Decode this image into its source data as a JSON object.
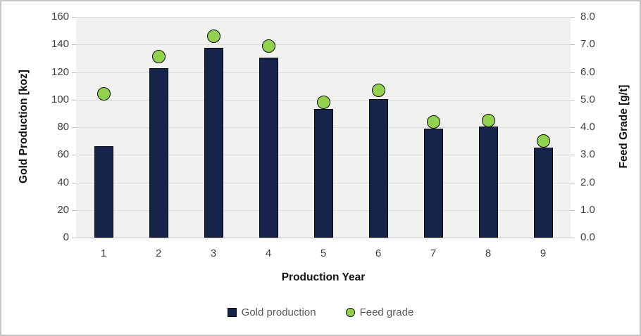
{
  "chart_data": {
    "type": "combo",
    "categories": [
      "1",
      "2",
      "3",
      "4",
      "5",
      "6",
      "7",
      "8",
      "9"
    ],
    "series": [
      {
        "name": "Gold production",
        "type": "bar",
        "axis": "left",
        "values": [
          66,
          123,
          137.5,
          130.5,
          93,
          100.5,
          79,
          80.5,
          65
        ]
      },
      {
        "name": "Feed grade",
        "type": "scatter",
        "axis": "right",
        "values": [
          5.2,
          6.55,
          7.3,
          6.95,
          4.9,
          5.35,
          4.2,
          4.25,
          3.5
        ]
      }
    ],
    "xlabel": "Production Year",
    "ylabel_left": "Gold Production  [koz]",
    "ylabel_right": "Feed Grade [g/t]",
    "ylim_left": [
      0,
      160
    ],
    "ylim_right": [
      0.0,
      8.0
    ],
    "yticks_left": [
      "160",
      "140",
      "120",
      "100",
      "80",
      "60",
      "40",
      "20",
      "0"
    ],
    "yticks_right": [
      "8.0",
      "7.0",
      "6.0",
      "5.0",
      "4.0",
      "3.0",
      "2.0",
      "1.0",
      "0.0"
    ],
    "grid": "horizontal",
    "legend_position": "bottom",
    "legend": [
      {
        "label": "Gold production",
        "marker": "square"
      },
      {
        "label": "Feed grade",
        "marker": "circle"
      }
    ]
  },
  "colors": {
    "bar_fill": "#16244c",
    "bar_border": "#05080f",
    "dot_fill": "#92d050",
    "dot_border": "#0a0a0a",
    "plot_bg": "#f1f1ef",
    "gridline": "#dcdcdc",
    "tick_text": "#404040",
    "legend_text": "#595959",
    "frame_border": "#c6c6c6"
  }
}
